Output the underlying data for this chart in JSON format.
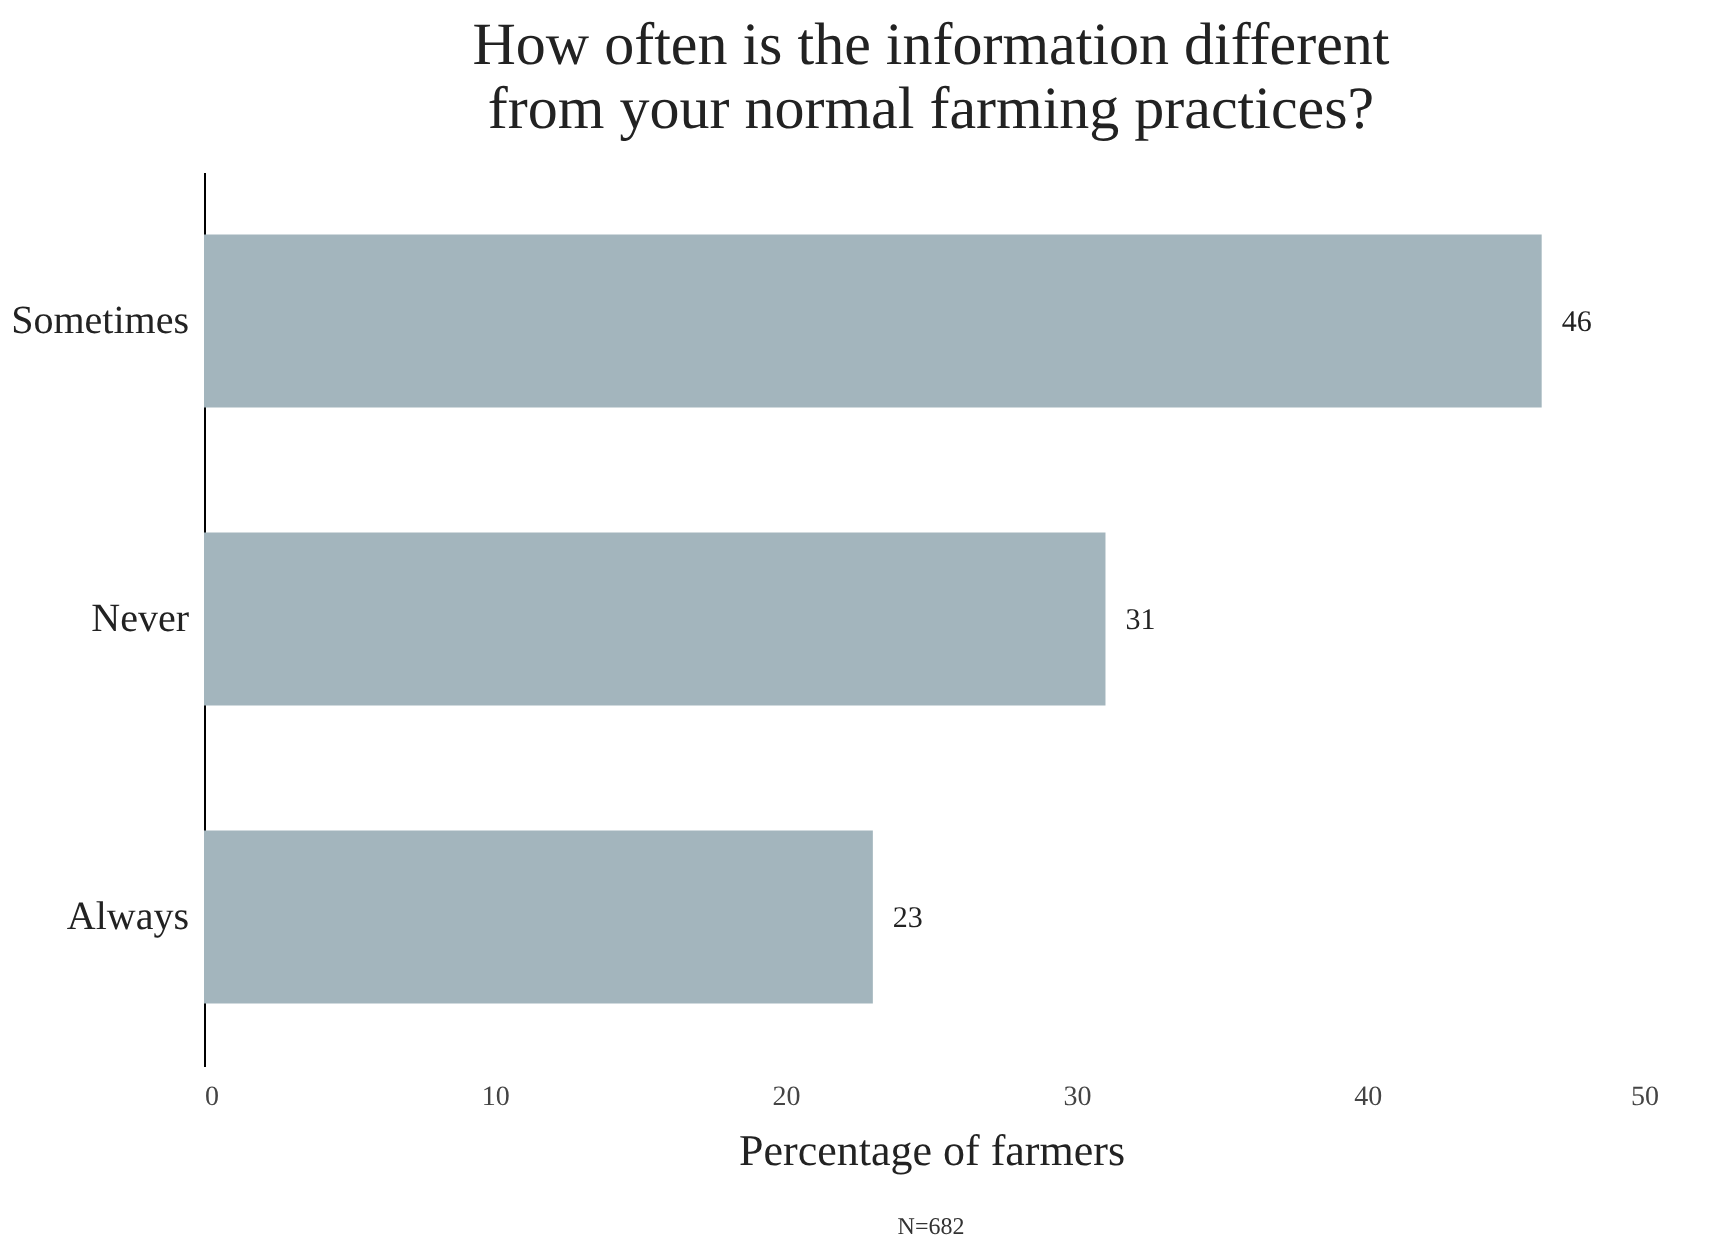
{
  "chart_data": {
    "type": "bar",
    "orientation": "horizontal",
    "title": "How often is the information different\nfrom your normal farming practices?",
    "categories": [
      "Sometimes",
      "Never",
      "Always"
    ],
    "values": [
      46,
      31,
      23
    ],
    "color": "#a3b5bd",
    "xlabel": "Percentage of farmers",
    "xlim": [
      0,
      50
    ],
    "xticks": [
      0,
      10,
      20,
      30,
      40,
      50
    ],
    "data_labels": true,
    "grid": false,
    "annotations": [
      "N=682"
    ]
  }
}
